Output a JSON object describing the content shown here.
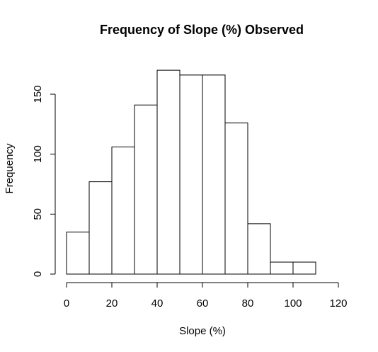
{
  "chart_data": {
    "type": "bar",
    "subtype": "histogram",
    "title": "Frequency of Slope (%) Observed",
    "xlabel": "Slope (%)",
    "ylabel": "Frequency",
    "bins": [
      {
        "from": 0,
        "to": 10,
        "count": 35
      },
      {
        "from": 10,
        "to": 20,
        "count": 77
      },
      {
        "from": 20,
        "to": 30,
        "count": 106
      },
      {
        "from": 30,
        "to": 40,
        "count": 141
      },
      {
        "from": 40,
        "to": 50,
        "count": 170
      },
      {
        "from": 50,
        "to": 60,
        "count": 166
      },
      {
        "from": 60,
        "to": 70,
        "count": 166
      },
      {
        "from": 70,
        "to": 80,
        "count": 126
      },
      {
        "from": 80,
        "to": 90,
        "count": 42
      },
      {
        "from": 90,
        "to": 100,
        "count": 10
      },
      {
        "from": 100,
        "to": 110,
        "count": 10
      }
    ],
    "xlim": [
      0,
      120
    ],
    "ylim": [
      0,
      150
    ],
    "x_ticks": [
      "0",
      "20",
      "40",
      "60",
      "80",
      "100",
      "120"
    ],
    "y_ticks": [
      "0",
      "50",
      "100",
      "150"
    ],
    "grid": false,
    "bar_fill": "#ffffff",
    "bar_stroke": "#000000"
  }
}
